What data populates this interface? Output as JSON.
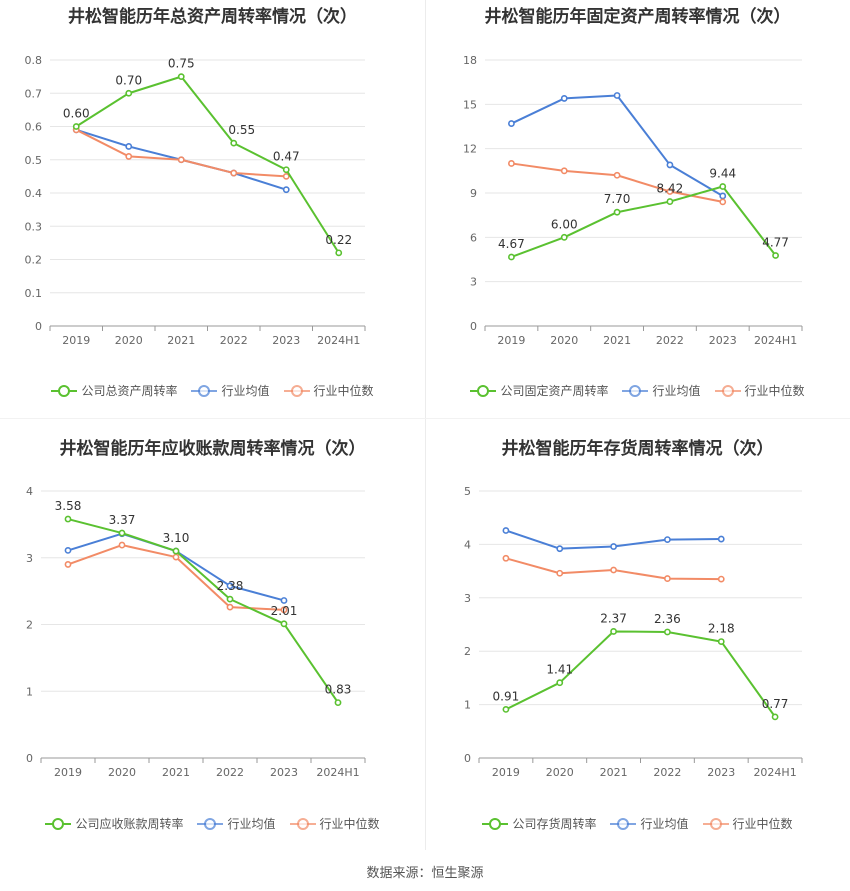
{
  "source_label": "数据来源：恒生聚源",
  "colors": {
    "company": "#5ac130",
    "avg": "#4a7fd6",
    "median": "#f28b66",
    "grid": "#e6e6e6",
    "axis": "#999999"
  },
  "chart_data": [
    {
      "type": "line",
      "title": "井松智能历年总资产周转率情况（次）",
      "categories": [
        "2019",
        "2020",
        "2021",
        "2022",
        "2023",
        "2024H1"
      ],
      "ylim": [
        0,
        0.8
      ],
      "yticks": [
        "0",
        "0.1",
        "0.2",
        "0.3",
        "0.4",
        "0.5",
        "0.6",
        "0.7",
        "0.8"
      ],
      "series": [
        {
          "name": "公司总资产周转率",
          "key": "company",
          "values": [
            0.6,
            0.7,
            0.75,
            0.55,
            0.47,
            0.22
          ],
          "labels": [
            "0.60",
            "0.70",
            "0.75",
            "0.55",
            "0.47",
            "0.22"
          ]
        },
        {
          "name": "行业均值",
          "key": "avg",
          "values": [
            0.59,
            0.54,
            0.5,
            0.46,
            0.41,
            null
          ]
        },
        {
          "name": "行业中位数",
          "key": "median",
          "values": [
            0.59,
            0.51,
            0.5,
            0.46,
            0.45,
            null
          ]
        }
      ]
    },
    {
      "type": "line",
      "title": "井松智能历年固定资产周转率情况（次）",
      "categories": [
        "2019",
        "2020",
        "2021",
        "2022",
        "2023",
        "2024H1"
      ],
      "ylim": [
        0,
        18
      ],
      "yticks": [
        "0",
        "3",
        "6",
        "9",
        "12",
        "15",
        "18"
      ],
      "series": [
        {
          "name": "公司固定资产周转率",
          "key": "company",
          "values": [
            4.67,
            6.0,
            7.7,
            8.42,
            9.44,
            4.77
          ],
          "labels": [
            "4.67",
            "6.00",
            "7.70",
            "8.42",
            "9.44",
            "4.77"
          ]
        },
        {
          "name": "行业均值",
          "key": "avg",
          "values": [
            13.7,
            15.4,
            15.6,
            10.9,
            8.8,
            null
          ]
        },
        {
          "name": "行业中位数",
          "key": "median",
          "values": [
            11.0,
            10.5,
            10.2,
            9.1,
            8.4,
            null
          ]
        }
      ]
    },
    {
      "type": "line",
      "title": "井松智能历年应收账款周转率情况（次）",
      "categories": [
        "2019",
        "2020",
        "2021",
        "2022",
        "2023",
        "2024H1"
      ],
      "ylim": [
        0,
        4
      ],
      "yticks": [
        "0",
        "1",
        "2",
        "3",
        "4"
      ],
      "series": [
        {
          "name": "公司应收账款周转率",
          "key": "company",
          "values": [
            3.58,
            3.37,
            3.1,
            2.38,
            2.01,
            0.83
          ],
          "labels": [
            "3.58",
            "3.37",
            "3.10",
            "2.38",
            "2.01",
            "0.83"
          ]
        },
        {
          "name": "行业均值",
          "key": "avg",
          "values": [
            3.11,
            3.36,
            3.1,
            2.58,
            2.36,
            null
          ]
        },
        {
          "name": "行业中位数",
          "key": "median",
          "values": [
            2.9,
            3.19,
            3.01,
            2.26,
            2.22,
            null
          ]
        }
      ]
    },
    {
      "type": "line",
      "title": "井松智能历年存货周转率情况（次）",
      "categories": [
        "2019",
        "2020",
        "2021",
        "2022",
        "2023",
        "2024H1"
      ],
      "ylim": [
        0,
        5
      ],
      "yticks": [
        "0",
        "1",
        "2",
        "3",
        "4",
        "5"
      ],
      "series": [
        {
          "name": "公司存货周转率",
          "key": "company",
          "values": [
            0.91,
            1.41,
            2.37,
            2.36,
            2.18,
            0.77
          ],
          "labels": [
            "0.91",
            "1.41",
            "2.37",
            "2.36",
            "2.18",
            "0.77"
          ]
        },
        {
          "name": "行业均值",
          "key": "avg",
          "values": [
            4.26,
            3.92,
            3.96,
            4.09,
            4.1,
            null
          ]
        },
        {
          "name": "行业中位数",
          "key": "median",
          "values": [
            3.74,
            3.46,
            3.52,
            3.36,
            3.35,
            null
          ]
        }
      ]
    }
  ]
}
